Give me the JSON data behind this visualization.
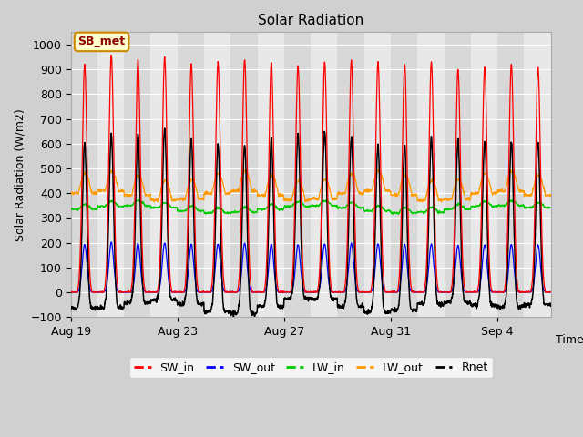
{
  "title": "Solar Radiation",
  "xlabel": "Time",
  "ylabel": "Solar Radiation (W/m2)",
  "ylim": [
    -100,
    1050
  ],
  "yticks": [
    -100,
    0,
    100,
    200,
    300,
    400,
    500,
    600,
    700,
    800,
    900,
    1000
  ],
  "fig_bg_color": "#d0d0d0",
  "plot_bg_color": "#e8e8e8",
  "colors": {
    "SW_in": "#ff0000",
    "SW_out": "#0000ff",
    "LW_in": "#00cc00",
    "LW_out": "#ff9900",
    "Rnet": "#000000"
  },
  "annotation_text": "SB_met",
  "annotation_bg": "#ffffcc",
  "annotation_border": "#cc8800",
  "n_days": 18,
  "dt_hours": 0.25,
  "sw_in_peaks": [
    920,
    960,
    940,
    950,
    920,
    930,
    940,
    930,
    915,
    930,
    935,
    930,
    920,
    930,
    900,
    910,
    920,
    910
  ],
  "xticklabels": [
    "Aug 19",
    "Aug 23",
    "Aug 27",
    "Aug 31",
    "Sep 4"
  ],
  "xtick_days": [
    0,
    4,
    8,
    12,
    16
  ]
}
